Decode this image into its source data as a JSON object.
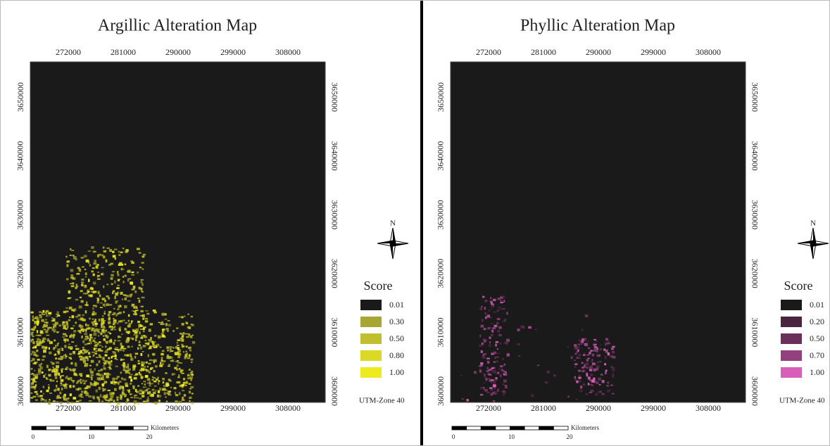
{
  "panels": [
    {
      "title": "Argillic Alteration Map",
      "x_ticks": [
        "272000",
        "281000",
        "290000",
        "299000",
        "308000"
      ],
      "y_ticks": [
        "3650000",
        "3640000",
        "3630000",
        "3620000",
        "3610000",
        "3600000"
      ],
      "north": "N",
      "legend": {
        "title": "Score",
        "items": [
          {
            "label": "0.01",
            "color": "#1a1a1a"
          },
          {
            "label": "0.30",
            "color": "#a8a632"
          },
          {
            "label": "0.50",
            "color": "#c2bf2e"
          },
          {
            "label": "0.80",
            "color": "#dcd925"
          },
          {
            "label": "1.00",
            "color": "#eeea20"
          }
        ]
      },
      "projection": "UTM-Zone 40",
      "scale_bar": {
        "ticks": [
          "0",
          "10",
          "20"
        ],
        "unit": "Kilometers"
      }
    },
    {
      "title": "Phyllic Alteration Map",
      "x_ticks": [
        "272000",
        "281000",
        "290000",
        "299000",
        "308000"
      ],
      "y_ticks": [
        "3650000",
        "3640000",
        "3630000",
        "3620000",
        "3610000",
        "3600000"
      ],
      "north": "N",
      "legend": {
        "title": "Score",
        "items": [
          {
            "label": "0.01",
            "color": "#1a1a1a"
          },
          {
            "label": "0.20",
            "color": "#4a2440"
          },
          {
            "label": "0.50",
            "color": "#6b2f5c"
          },
          {
            "label": "0.70",
            "color": "#93407f"
          },
          {
            "label": "1.00",
            "color": "#d75fb8"
          }
        ]
      },
      "projection": "UTM-Zone 40",
      "scale_bar": {
        "ticks": [
          "0",
          "10",
          "20"
        ],
        "unit": "Kilometers"
      }
    }
  ]
}
